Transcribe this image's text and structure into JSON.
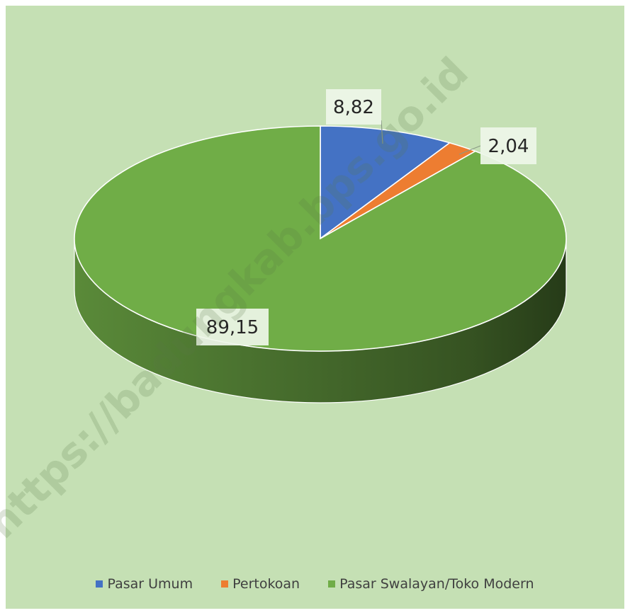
{
  "chart_data": {
    "type": "pie",
    "categories": [
      "Pasar Umum",
      "Pertokoan",
      "Pasar Swalayan/Toko Modern"
    ],
    "values": [
      8.82,
      2.04,
      89.15
    ],
    "data_labels": [
      "8,82",
      "2,04",
      "89,15"
    ],
    "colors": [
      "#4472c4",
      "#ed7d31",
      "#70ad47"
    ],
    "legend_position": "bottom",
    "style": "3d"
  },
  "legend": {
    "items": [
      {
        "label": "Pasar Umum",
        "color": "#4472c4"
      },
      {
        "label": "Pertokoan",
        "color": "#ed7d31"
      },
      {
        "label": "Pasar Swalayan/Toko Modern",
        "color": "#70ad47"
      }
    ]
  },
  "watermark": {
    "text": "https://badungkab.bps.go.id"
  }
}
